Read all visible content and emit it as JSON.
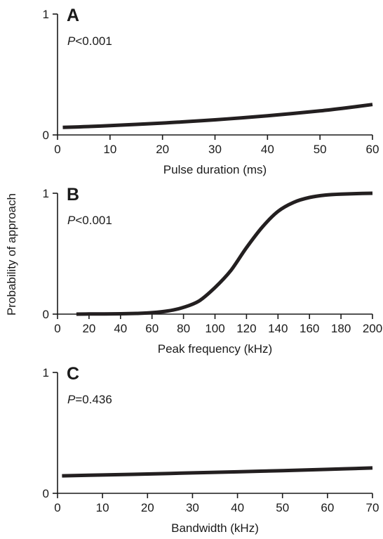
{
  "figure": {
    "ylabel": "Probability of approach"
  },
  "chart_data": [
    {
      "type": "line",
      "panel": "A",
      "annotation": "<0.001",
      "annotation_symbol": "P",
      "xlabel": "Pulse duration (ms)",
      "ylabel": "Probability of approach",
      "xlim": [
        0,
        60
      ],
      "ylim": [
        0,
        1
      ],
      "x_ticks": [
        0,
        10,
        20,
        30,
        40,
        50,
        60
      ],
      "y_ticks": [
        0,
        1
      ],
      "grid": false,
      "x": [
        1,
        5,
        10,
        15,
        20,
        25,
        30,
        35,
        40,
        45,
        50,
        55,
        60
      ],
      "y": [
        0.062,
        0.068,
        0.077,
        0.087,
        0.098,
        0.111,
        0.125,
        0.141,
        0.159,
        0.178,
        0.199,
        0.224,
        0.252
      ]
    },
    {
      "type": "line",
      "panel": "B",
      "annotation": "<0.001",
      "annotation_symbol": "P",
      "xlabel": "Peak frequency (kHz)",
      "ylabel": "Probability of approach",
      "xlim": [
        0,
        200
      ],
      "ylim": [
        0,
        1
      ],
      "x_ticks": [
        0,
        20,
        40,
        60,
        80,
        100,
        120,
        140,
        160,
        180,
        200
      ],
      "y_ticks": [
        0,
        1
      ],
      "grid": false,
      "x": [
        12,
        20,
        30,
        40,
        50,
        60,
        70,
        80,
        90,
        100,
        110,
        120,
        130,
        140,
        150,
        160,
        170,
        180,
        190,
        200
      ],
      "y": [
        0.0,
        0.001,
        0.002,
        0.003,
        0.006,
        0.012,
        0.026,
        0.056,
        0.11,
        0.22,
        0.36,
        0.55,
        0.72,
        0.85,
        0.925,
        0.965,
        0.985,
        0.993,
        0.997,
        1.0
      ]
    },
    {
      "type": "line",
      "panel": "C",
      "annotation": "=0.436",
      "annotation_symbol": "P",
      "xlabel": "Bandwidth (kHz)",
      "ylabel": "Probability of approach",
      "xlim": [
        0,
        70
      ],
      "ylim": [
        0,
        1
      ],
      "x_ticks": [
        0,
        10,
        20,
        30,
        40,
        50,
        60,
        70
      ],
      "y_ticks": [
        0,
        1
      ],
      "grid": false,
      "x": [
        1,
        10,
        20,
        30,
        40,
        50,
        60,
        70
      ],
      "y": [
        0.145,
        0.152,
        0.16,
        0.169,
        0.178,
        0.188,
        0.198,
        0.21
      ]
    }
  ]
}
